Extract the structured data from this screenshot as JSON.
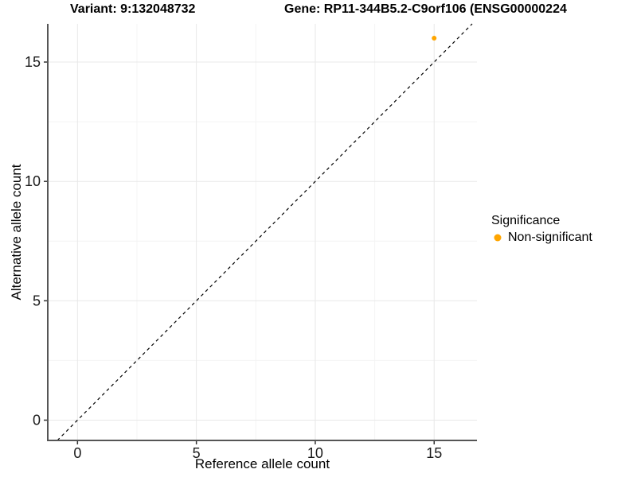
{
  "chart_data": {
    "type": "scatter",
    "titles": {
      "variant": "Variant: 9:132048732",
      "gene": "Gene: RP11-344B5.2-C9orf106 (ENSG00000224"
    },
    "xlabel": "Reference allele count",
    "ylabel": "Alternative allele count",
    "xlim": [
      -1.25,
      16.8
    ],
    "ylim": [
      -0.85,
      16.6
    ],
    "x_ticks": [
      0,
      5,
      10,
      15
    ],
    "y_ticks": [
      0,
      5,
      10,
      15
    ],
    "x_minor_gridlines": [
      2.5,
      7.5,
      12.5
    ],
    "y_minor_gridlines": [
      2.5,
      7.5,
      12.5
    ],
    "grid": "on",
    "points": [
      {
        "x": 15,
        "y": 16,
        "series": "Non-significant",
        "color": "#FFA500"
      }
    ],
    "series": [
      {
        "name": "Non-significant",
        "color": "#FFA500",
        "values": [
          [
            15,
            16
          ]
        ]
      }
    ],
    "reference_line": {
      "type": "identity y=x",
      "style": "dashed",
      "color": "#000000"
    },
    "legend": {
      "title": "Significance",
      "position": "right",
      "entries": [
        {
          "label": "Non-significant",
          "color": "#FFA500"
        }
      ]
    },
    "style": {
      "background": "#ffffff",
      "major_grid_color": "#e8e8e8",
      "minor_grid_color": "#f4f4f4",
      "axis_line_color": "#555555",
      "tick_mark_color": "#333333",
      "tick_label_color": "#1a1a1a",
      "title_color": "#000000"
    }
  }
}
